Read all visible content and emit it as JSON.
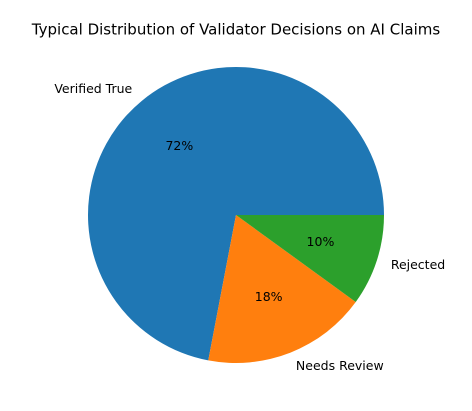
{
  "chart_data": {
    "type": "pie",
    "title": "Typical Distribution of Validator Decisions on AI Claims",
    "categories": [
      "Verified True",
      "Needs Review",
      "Rejected"
    ],
    "values": [
      72,
      18,
      10
    ],
    "value_labels": [
      "72%",
      "18%",
      "10%"
    ],
    "colors": [
      "#1f77b4",
      "#ff7f0e",
      "#2ca02c"
    ]
  }
}
